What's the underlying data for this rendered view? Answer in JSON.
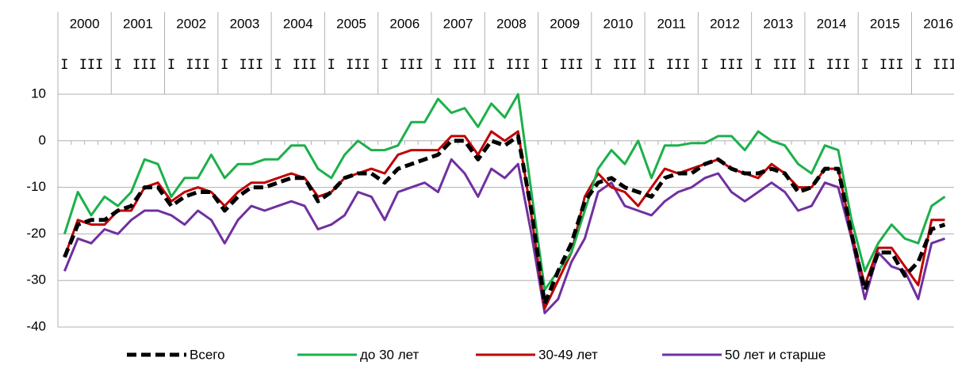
{
  "chart_data": {
    "type": "line",
    "years": [
      "2000",
      "2001",
      "2002",
      "2003",
      "2004",
      "2005",
      "2006",
      "2007",
      "2008",
      "2009",
      "2010",
      "2011",
      "2012",
      "2013",
      "2014",
      "2015",
      "2016"
    ],
    "categories": [
      "I",
      null,
      "III",
      null,
      "I",
      null,
      "III",
      null,
      "I",
      null,
      "III",
      null,
      "I",
      null,
      "III",
      null,
      "I",
      null,
      "III",
      null,
      "I",
      null,
      "III",
      null,
      "I",
      null,
      "III",
      null,
      "I",
      null,
      "III",
      null,
      "I",
      null,
      "III",
      null,
      "I",
      null,
      "III",
      null,
      "I",
      null,
      "III",
      null,
      "I",
      null,
      "III",
      null,
      "I",
      null,
      "III",
      null,
      "I",
      null,
      "III",
      null,
      "I",
      null,
      "III",
      null,
      "I",
      null,
      "III",
      null,
      "I",
      null,
      "III"
    ],
    "ylim": [
      -40,
      10
    ],
    "yticks": [
      -40,
      -30,
      -20,
      -10,
      0,
      10
    ],
    "grid": true,
    "series": [
      {
        "name": "Всего",
        "color": "#000000",
        "dashed": true,
        "values": [
          -25,
          -18,
          -17,
          -17,
          -15,
          -14,
          -10,
          -10,
          -14,
          -12,
          -11,
          -11,
          -15,
          -12,
          -10,
          -10,
          -9,
          -8,
          -8,
          -13,
          -11,
          -8,
          -7,
          -7,
          -9,
          -6,
          -5,
          -4,
          -3,
          0,
          0,
          -4,
          0,
          -1,
          1,
          -15,
          -35,
          -28,
          -22,
          -13,
          -9,
          -8,
          -10,
          -11,
          -12,
          -8,
          -7,
          -7,
          -5,
          -4,
          -6,
          -7,
          -7,
          -6,
          -7,
          -11,
          -10,
          -6,
          -6,
          -20,
          -32,
          -24,
          -24,
          -29,
          -26,
          -19,
          -18
        ]
      },
      {
        "name": "до 30 лет",
        "color": "#1cb04a",
        "values": [
          -20,
          -11,
          -16,
          -12,
          -14,
          -11,
          -4,
          -5,
          -12,
          -8,
          -8,
          -3,
          -8,
          -5,
          -5,
          -4,
          -4,
          -1,
          -1,
          -6,
          -8,
          -3,
          0,
          -2,
          -2,
          -1,
          4,
          4,
          9,
          6,
          7,
          3,
          8,
          5,
          10,
          -11,
          -32,
          -28,
          -24,
          -15,
          -6,
          -2,
          -5,
          0,
          -8,
          -1,
          -1,
          -0.5,
          -0.5,
          1,
          1,
          -2,
          2,
          0,
          -1,
          -5,
          -7,
          -1,
          -2,
          -17,
          -28,
          -22,
          -18,
          -21,
          -22,
          -14,
          -12
        ]
      },
      {
        "name": "30-49 лет",
        "color": "#c00000",
        "values": [
          -25,
          -17,
          -18,
          -18,
          -15,
          -15,
          -10,
          -9,
          -13,
          -11,
          -10,
          -11,
          -14,
          -11,
          -9,
          -9,
          -8,
          -7,
          -8,
          -12,
          -11,
          -8,
          -7,
          -6,
          -7,
          -3,
          -2,
          -2,
          -2,
          1,
          1,
          -3,
          2,
          0,
          2,
          -16,
          -36,
          -30,
          -24,
          -12,
          -7,
          -10,
          -11,
          -14,
          -10,
          -6,
          -7,
          -6,
          -5,
          -4,
          -6,
          -7,
          -8,
          -5,
          -7,
          -10,
          -10,
          -6,
          -6,
          -20,
          -31,
          -23,
          -23,
          -27,
          -31,
          -17,
          -17
        ]
      },
      {
        "name": "50 лет и старше",
        "color": "#7030a0",
        "values": [
          -28,
          -21,
          -22,
          -19,
          -20,
          -17,
          -15,
          -15,
          -16,
          -18,
          -15,
          -17,
          -22,
          -17,
          -14,
          -15,
          -14,
          -13,
          -14,
          -19,
          -18,
          -16,
          -11,
          -12,
          -17,
          -11,
          -10,
          -9,
          -11,
          -4,
          -7,
          -12,
          -6,
          -8,
          -5,
          -20,
          -37,
          -34,
          -26,
          -21,
          -11,
          -9,
          -14,
          -15,
          -16,
          -13,
          -11,
          -10,
          -8,
          -7,
          -11,
          -13,
          -11,
          -9,
          -11,
          -15,
          -14,
          -9,
          -10,
          -21,
          -34,
          -24,
          -27,
          -28,
          -34,
          -22,
          -21
        ]
      }
    ]
  }
}
